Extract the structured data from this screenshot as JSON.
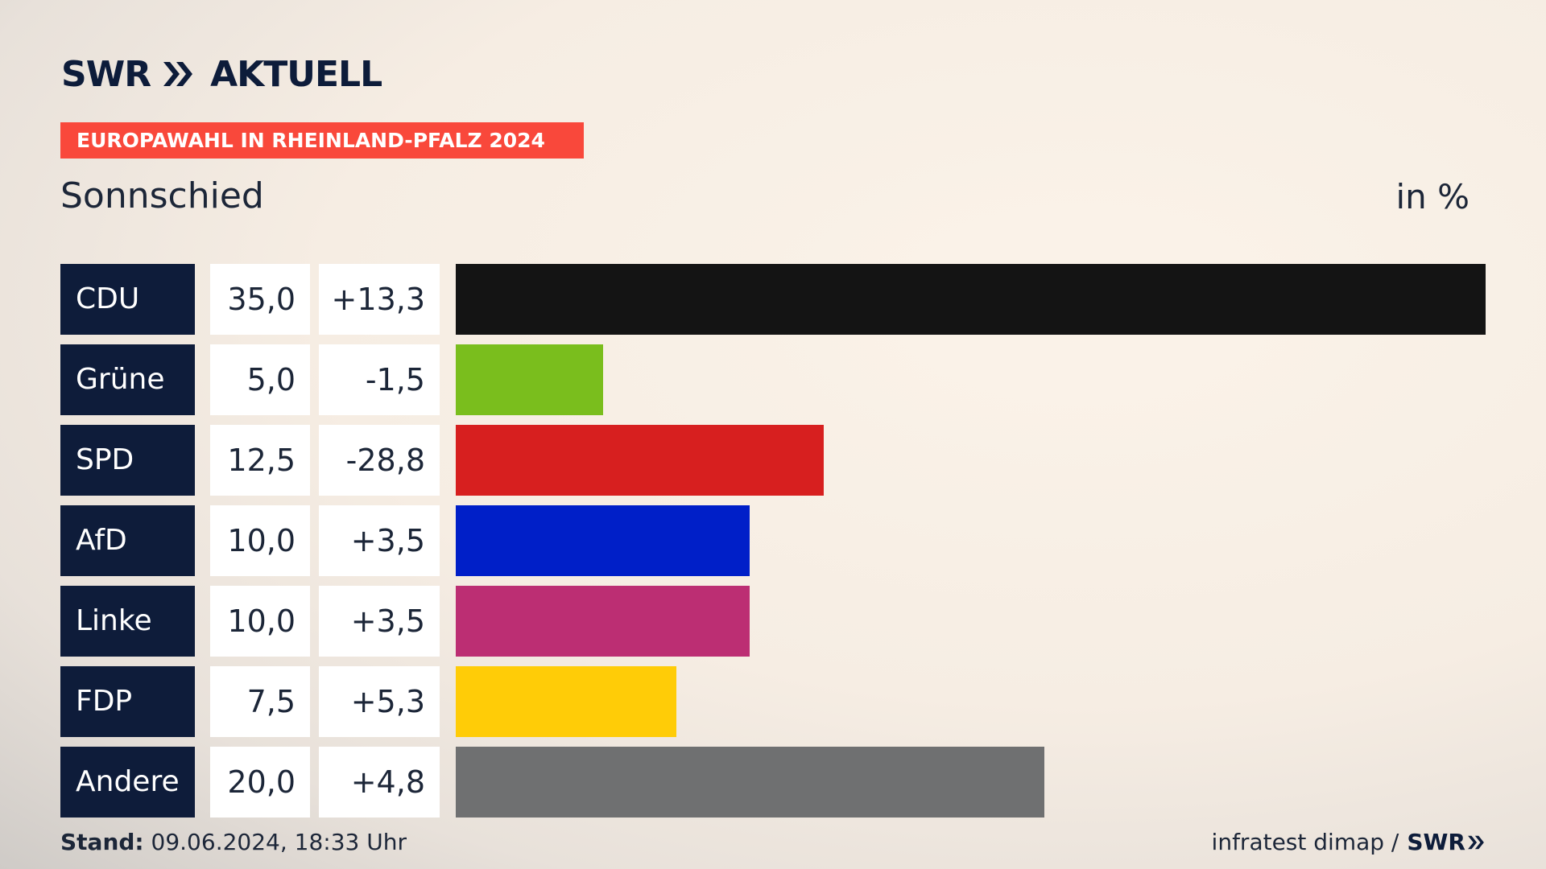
{
  "brand": {
    "name": "SWR",
    "product": "AKTUELL",
    "color": "#0d1c3a"
  },
  "banner": {
    "text": "EUROPAWAHL IN RHEINLAND-PFALZ 2024",
    "color": "#f9483b"
  },
  "place": "Sonnschied",
  "unit": "in %",
  "chart_data": {
    "type": "bar",
    "orientation": "horizontal",
    "categories": [
      "CDU",
      "Grüne",
      "SPD",
      "AfD",
      "Linke",
      "FDP",
      "Andere"
    ],
    "series": [
      {
        "name": "",
        "values": [
          35.0,
          5.0,
          12.5,
          10.0,
          10.0,
          7.5,
          20.0
        ]
      }
    ],
    "value_labels": [
      "35,0",
      "5,0",
      "12,5",
      "10,0",
      "10,0",
      "7,5",
      "20,0"
    ],
    "change_labels": [
      "+13,3",
      "-1,5",
      "-28,8",
      "+3,5",
      "+3,5",
      "+5,3",
      "+4,8"
    ],
    "changes": [
      13.3,
      -1.5,
      -28.8,
      3.5,
      3.5,
      5.3,
      4.8
    ],
    "colors": [
      "#141414",
      "#7abe1d",
      "#d71f1f",
      "#001fc8",
      "#bc2e73",
      "#ffcc07",
      "#6f7071"
    ],
    "xlim": [
      0,
      35.0
    ],
    "grid": false,
    "legend": "none"
  },
  "footer": {
    "stand_label": "Stand:",
    "stand_value": "09.06.2024, 18:33 Uhr",
    "source": "infratest dimap /",
    "source_brand": "SWR"
  }
}
